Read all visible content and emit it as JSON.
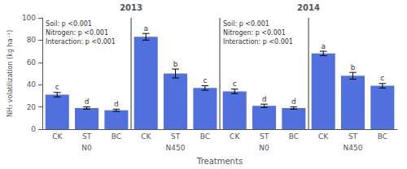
{
  "chart_data": {
    "type": "bar",
    "xlabel": "Treatments",
    "ylabel": "NH₃ volatilization (kg ha⁻¹)",
    "categories": [
      "CK",
      "ST",
      "BC",
      "CK",
      "ST",
      "BC",
      "CK",
      "ST",
      "BC",
      "CK",
      "ST",
      "BC"
    ],
    "values": [
      31,
      19,
      17,
      83,
      50,
      37,
      34,
      21,
      19,
      68,
      48,
      39
    ],
    "errors": [
      2.0,
      1.0,
      1.0,
      3.0,
      4.0,
      2.0,
      2.0,
      1.5,
      1.0,
      2.0,
      3.0,
      2.0
    ],
    "letters": [
      "c",
      "d",
      "d",
      "a",
      "b",
      "c",
      "c",
      "d",
      "d",
      "a",
      "b",
      "c"
    ],
    "groups": [
      "N0",
      "N450",
      "N0",
      "N450"
    ],
    "panels": [
      "2013",
      "2014"
    ],
    "annotations": [
      "Soil: p <0.001\nNitrogen: p <0.001\nInteraction: p <0.001",
      "Soil: p <0.001\nNitrogen: p <0.001\nInteraction: p <0.001"
    ],
    "ylim": [
      0,
      100
    ],
    "yticks": [
      0,
      20,
      40,
      60,
      80,
      100
    ],
    "grid": false
  }
}
